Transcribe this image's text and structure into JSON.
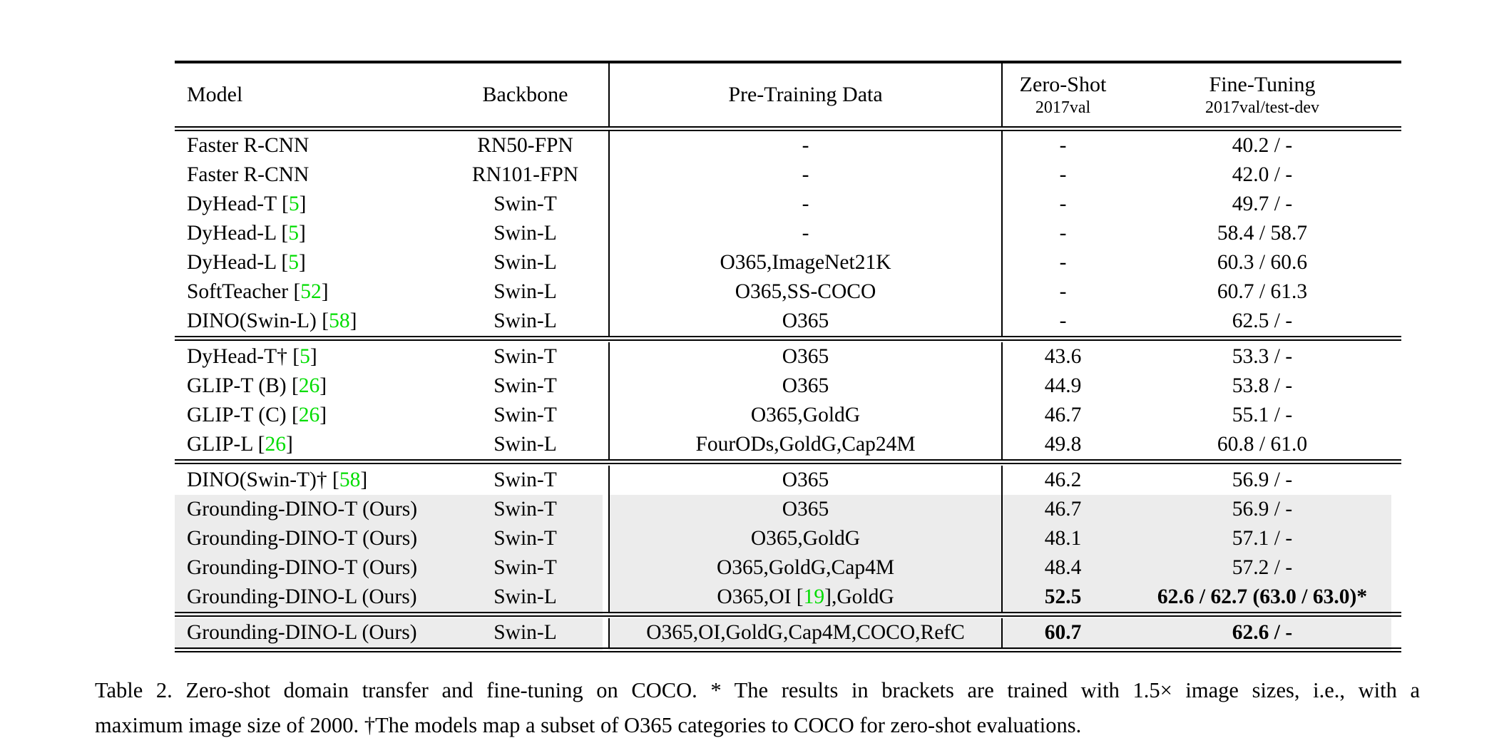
{
  "colors": {
    "citation_green": "#00dd00",
    "highlight_gray": "#ececec",
    "rule_black": "#000000",
    "page_background": "#ffffff"
  },
  "table": {
    "columns": [
      {
        "label": "Model",
        "sub": ""
      },
      {
        "label": "Backbone",
        "sub": ""
      },
      {
        "label": "Pre-Training Data",
        "sub": ""
      },
      {
        "label": "Zero-Shot",
        "sub": "2017val"
      },
      {
        "label": "Fine-Tuning",
        "sub": "2017val/test-dev"
      }
    ],
    "blocks": [
      [
        {
          "model": "Faster R-CNN",
          "backbone": "RN50-FPN",
          "pretrain": "-",
          "zeroshot": "-",
          "finetune": "40.2 / -"
        },
        {
          "model": "Faster R-CNN",
          "backbone": "RN101-FPN",
          "pretrain": "-",
          "zeroshot": "-",
          "finetune": "42.0 / -"
        },
        {
          "model": "DyHead-T [[5]]",
          "backbone": "Swin-T",
          "pretrain": "-",
          "zeroshot": "-",
          "finetune": "49.7 / -"
        },
        {
          "model": "DyHead-L [[5]]",
          "backbone": "Swin-L",
          "pretrain": "-",
          "zeroshot": "-",
          "finetune": "58.4 / 58.7"
        },
        {
          "model": "DyHead-L [[5]]",
          "backbone": "Swin-L",
          "pretrain": "O365,ImageNet21K",
          "zeroshot": "-",
          "finetune": "60.3 / 60.6"
        },
        {
          "model": "SoftTeacher [[52]]",
          "backbone": "Swin-L",
          "pretrain": "O365,SS-COCO",
          "zeroshot": "-",
          "finetune": "60.7 / 61.3"
        },
        {
          "model": "DINO(Swin-L) [[58]]",
          "backbone": "Swin-L",
          "pretrain": "O365",
          "zeroshot": "-",
          "finetune": "62.5 / -"
        }
      ],
      [
        {
          "model": "DyHead-T† [[5]]",
          "backbone": "Swin-T",
          "pretrain": "O365",
          "zeroshot": "43.6",
          "finetune": "53.3 / -"
        },
        {
          "model": "GLIP-T (B) [[26]]",
          "backbone": "Swin-T",
          "pretrain": "O365",
          "zeroshot": "44.9",
          "finetune": "53.8 / -"
        },
        {
          "model": "GLIP-T (C) [[26]]",
          "backbone": "Swin-T",
          "pretrain": "O365,GoldG",
          "zeroshot": "46.7",
          "finetune": "55.1 / -"
        },
        {
          "model": "GLIP-L [[26]]",
          "backbone": "Swin-L",
          "pretrain": "FourODs,GoldG,Cap24M",
          "zeroshot": "49.8",
          "finetune": "60.8 / 61.0"
        }
      ],
      [
        {
          "model": "DINO(Swin-T)† [[58]]",
          "backbone": "Swin-T",
          "pretrain": "O365",
          "zeroshot": "46.2",
          "finetune": "56.9 / -"
        },
        {
          "model": "Grounding-DINO-T (Ours)",
          "backbone": "Swin-T",
          "pretrain": "O365",
          "zeroshot": "46.7",
          "finetune": "56.9 / -",
          "highlight": true
        },
        {
          "model": "Grounding-DINO-T (Ours)",
          "backbone": "Swin-T",
          "pretrain": "O365,GoldG",
          "zeroshot": "48.1",
          "finetune": "57.1 / -",
          "highlight": true
        },
        {
          "model": "Grounding-DINO-T (Ours)",
          "backbone": "Swin-T",
          "pretrain": "O365,GoldG,Cap4M",
          "zeroshot": "48.4",
          "finetune": "57.2 / -",
          "highlight": true
        },
        {
          "model": "Grounding-DINO-L (Ours)",
          "backbone": "Swin-L",
          "pretrain": "O365,OI [[19]],GoldG",
          "zeroshot": "52.5",
          "finetune": "62.6 / 62.7 (63.0 / 63.0)*",
          "highlight": true,
          "zs_bold": true,
          "ft_bold": true
        }
      ],
      [
        {
          "model": "Grounding-DINO-L (Ours)",
          "backbone": "Swin-L",
          "pretrain": "O365,OI,GoldG,Cap4M,COCO,RefC",
          "zeroshot": "60.7",
          "finetune": "62.6 / -",
          "highlight": true,
          "zs_bold": true,
          "ft_bold": true
        }
      ]
    ]
  },
  "caption": {
    "line1": "Table 2.  Zero-shot domain transfer and fine-tuning on COCO. * The results in brackets are trained with 1.5× image sizes, i.e., with a",
    "line2": "maximum image size of 2000. †The models map a subset of O365 categories to COCO for zero-shot evaluations."
  }
}
